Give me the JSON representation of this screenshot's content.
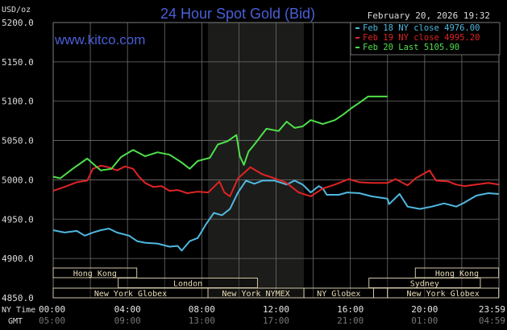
{
  "chart_data": {
    "type": "line",
    "title": "24 Hour Spot Gold (Bid)",
    "watermark": "www.kitco.com",
    "timestamp": "February 20, 2026 19:32",
    "ylabel": "USD/oz",
    "ylim": [
      4850,
      5200
    ],
    "yticks": [
      "5200.0",
      "5150.0",
      "5100.0",
      "5050.0",
      "5000.0",
      "4950.0",
      "4900.0",
      "4850.0"
    ],
    "xaxis": {
      "row_labels": [
        "NY Time",
        "GMT"
      ],
      "ny_ticks": [
        "00:00",
        "04:00",
        "08:00",
        "12:00",
        "16:00",
        "20:00",
        "23:59"
      ],
      "gmt_ticks": [
        "05:00",
        "09:00",
        "13:00",
        "17:00",
        "21:00",
        "01:00",
        "04:59"
      ]
    },
    "grid": true,
    "shaded_period": [
      "08:20",
      "13:30"
    ],
    "legend": {
      "position": "top-right",
      "entries": [
        {
          "label": "Feb 18 NY close 4976.00",
          "color": "#4fb8e0"
        },
        {
          "label": "Feb 19 NY close 4995.20",
          "color": "#e02424"
        },
        {
          "label": "Feb 20 Last 5105.90",
          "color": "#4ee04a"
        }
      ]
    },
    "series": [
      {
        "name": "Feb 18",
        "color": "#4fb8e0",
        "points": [
          [
            "00:00",
            4936
          ],
          [
            "00:37",
            4933
          ],
          [
            "01:16",
            4935
          ],
          [
            "01:42",
            4929
          ],
          [
            "02:08",
            4933
          ],
          [
            "02:34",
            4936
          ],
          [
            "03:00",
            4938
          ],
          [
            "03:26",
            4933
          ],
          [
            "04:05",
            4929
          ],
          [
            "04:31",
            4922
          ],
          [
            "04:57",
            4920
          ],
          [
            "05:37",
            4919
          ],
          [
            "06:16",
            4915
          ],
          [
            "06:42",
            4916
          ],
          [
            "06:55",
            4910
          ],
          [
            "07:21",
            4922
          ],
          [
            "07:47",
            4926
          ],
          [
            "08:13",
            4943
          ],
          [
            "08:39",
            4958
          ],
          [
            "09:05",
            4955
          ],
          [
            "09:31",
            4963
          ],
          [
            "09:57",
            4984
          ],
          [
            "10:23",
            4999
          ],
          [
            "10:50",
            4995
          ],
          [
            "11:16",
            4999
          ],
          [
            "11:55",
            4999
          ],
          [
            "12:34",
            4994
          ],
          [
            "13:00",
            4999
          ],
          [
            "13:26",
            4994
          ],
          [
            "13:52",
            4984
          ],
          [
            "14:18",
            4992
          ],
          [
            "14:31",
            4989
          ],
          [
            "14:44",
            4981
          ],
          [
            "15:23",
            4981
          ],
          [
            "15:50",
            4984
          ],
          [
            "16:29",
            4983
          ],
          [
            "17:08",
            4979
          ],
          [
            "18:00",
            4976
          ],
          [
            "18:05",
            4969
          ],
          [
            "18:39",
            4982
          ],
          [
            "19:05",
            4966
          ],
          [
            "19:44",
            4963
          ],
          [
            "20:23",
            4966
          ],
          [
            "21:03",
            4970
          ],
          [
            "21:42",
            4966
          ],
          [
            "22:08",
            4971
          ],
          [
            "22:47",
            4980
          ],
          [
            "23:26",
            4983
          ],
          [
            "23:59",
            4982
          ]
        ]
      },
      {
        "name": "Feb 19",
        "color": "#e02424",
        "points": [
          [
            "00:00",
            4986
          ],
          [
            "00:37",
            4991
          ],
          [
            "01:16",
            4997
          ],
          [
            "01:50",
            4999
          ],
          [
            "02:08",
            5014
          ],
          [
            "02:34",
            5018
          ],
          [
            "03:00",
            5016
          ],
          [
            "03:26",
            5012
          ],
          [
            "03:52",
            5017
          ],
          [
            "04:18",
            5014
          ],
          [
            "04:37",
            5004
          ],
          [
            "04:57",
            4996
          ],
          [
            "05:23",
            4991
          ],
          [
            "05:50",
            4992
          ],
          [
            "06:16",
            4986
          ],
          [
            "06:42",
            4987
          ],
          [
            "07:13",
            4983
          ],
          [
            "07:47",
            4985
          ],
          [
            "08:21",
            4984
          ],
          [
            "08:57",
            4998
          ],
          [
            "09:13",
            4984
          ],
          [
            "09:31",
            4979
          ],
          [
            "09:57",
            5002
          ],
          [
            "10:37",
            5016
          ],
          [
            "11:16",
            5007
          ],
          [
            "11:55",
            5002
          ],
          [
            "12:34",
            4996
          ],
          [
            "13:13",
            4984
          ],
          [
            "13:52",
            4979
          ],
          [
            "14:31",
            4989
          ],
          [
            "15:10",
            4994
          ],
          [
            "15:55",
            5001
          ],
          [
            "16:29",
            4997
          ],
          [
            "17:08",
            4996
          ],
          [
            "18:00",
            4996
          ],
          [
            "18:26",
            5001
          ],
          [
            "19:05",
            4993
          ],
          [
            "19:31",
            5002
          ],
          [
            "20:16",
            5012
          ],
          [
            "20:37",
            4999
          ],
          [
            "21:16",
            4998
          ],
          [
            "21:42",
            4994
          ],
          [
            "22:08",
            4992
          ],
          [
            "22:47",
            4994
          ],
          [
            "23:26",
            4996
          ],
          [
            "23:59",
            4994
          ]
        ]
      },
      {
        "name": "Feb 20",
        "color": "#4ee04a",
        "points": [
          [
            "00:00",
            5004
          ],
          [
            "00:23",
            5002
          ],
          [
            "01:03",
            5014
          ],
          [
            "01:50",
            5027
          ],
          [
            "02:13",
            5019
          ],
          [
            "02:34",
            5012
          ],
          [
            "03:08",
            5014
          ],
          [
            "03:39",
            5029
          ],
          [
            "04:18",
            5038
          ],
          [
            "04:57",
            5030
          ],
          [
            "05:37",
            5035
          ],
          [
            "06:16",
            5032
          ],
          [
            "06:55",
            5022
          ],
          [
            "07:21",
            5014
          ],
          [
            "07:47",
            5024
          ],
          [
            "08:26",
            5028
          ],
          [
            "08:52",
            5045
          ],
          [
            "09:23",
            5049
          ],
          [
            "09:52",
            5057
          ],
          [
            "10:03",
            5030
          ],
          [
            "10:16",
            5019
          ],
          [
            "10:31",
            5036
          ],
          [
            "10:50",
            5045
          ],
          [
            "11:29",
            5065
          ],
          [
            "12:08",
            5062
          ],
          [
            "12:34",
            5074
          ],
          [
            "13:00",
            5066
          ],
          [
            "13:26",
            5068
          ],
          [
            "13:52",
            5076
          ],
          [
            "14:31",
            5071
          ],
          [
            "15:10",
            5076
          ],
          [
            "15:37",
            5083
          ],
          [
            "16:03",
            5091
          ],
          [
            "16:29",
            5098
          ],
          [
            "16:57",
            5106
          ],
          [
            "18:00",
            5106
          ]
        ]
      }
    ],
    "sessions": [
      {
        "label": "Hong Kong",
        "row": 0,
        "start": "00:00",
        "end": "04:30"
      },
      {
        "label": "Hong Kong",
        "row": 0,
        "start": "19:30",
        "end": "23:59"
      },
      {
        "label": "London",
        "row": 1,
        "start": "03:30",
        "end": "11:00"
      },
      {
        "label": "Sydney",
        "row": 1,
        "start": "17:00",
        "end": "23:00"
      },
      {
        "label": "New York Globex",
        "row": 2,
        "start": "00:00",
        "end": "08:20"
      },
      {
        "label": "New York NYMEX",
        "row": 2,
        "start": "08:20",
        "end": "13:30"
      },
      {
        "label": "NY Globex",
        "row": 2,
        "start": "13:30",
        "end": "17:15"
      },
      {
        "label": "",
        "row": 2,
        "start": "17:15",
        "end": "18:00"
      },
      {
        "label": "New York Globex",
        "row": 2,
        "start": "18:00",
        "end": "23:59"
      }
    ]
  }
}
